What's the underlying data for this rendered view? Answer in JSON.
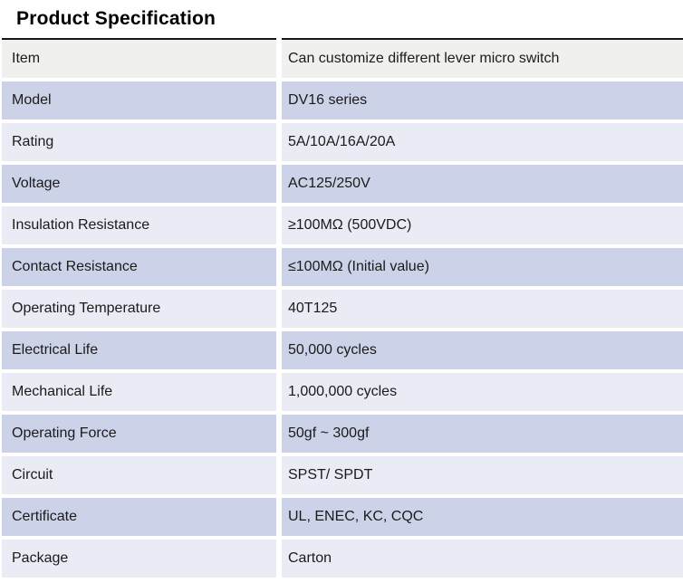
{
  "title": "Product Specification",
  "colors": {
    "background": "#ffffff",
    "row_gray": "#f0f0ef",
    "row_dark": "#ccd2e8",
    "row_light": "#e9ebf5",
    "border_top": "#161616",
    "text": "#1b1b1b"
  },
  "table": {
    "rows": [
      {
        "label": "Item",
        "value": "Can customize different lever micro switch"
      },
      {
        "label": "Model",
        "value": "DV16 series"
      },
      {
        "label": "Rating",
        "value": "5A/10A/16A/20A"
      },
      {
        "label": "Voltage",
        "value": "AC125/250V"
      },
      {
        "label": "Insulation Resistance",
        "value": "≥100MΩ (500VDC)"
      },
      {
        "label": "Contact Resistance",
        "value": "≤100MΩ (Initial value)"
      },
      {
        "label": "Operating Temperature",
        "value": "40T125"
      },
      {
        "label": "Electrical Life",
        "value": "50,000 cycles"
      },
      {
        "label": "Mechanical Life",
        "value": "1,000,000 cycles"
      },
      {
        "label": "Operating Force",
        "value": "50gf ~ 300gf"
      },
      {
        "label": "Circuit",
        "value": "SPST/ SPDT"
      },
      {
        "label": "Certificate",
        "value": "UL, ENEC, KC, CQC"
      },
      {
        "label": "Package",
        "value": "Carton"
      }
    ]
  }
}
